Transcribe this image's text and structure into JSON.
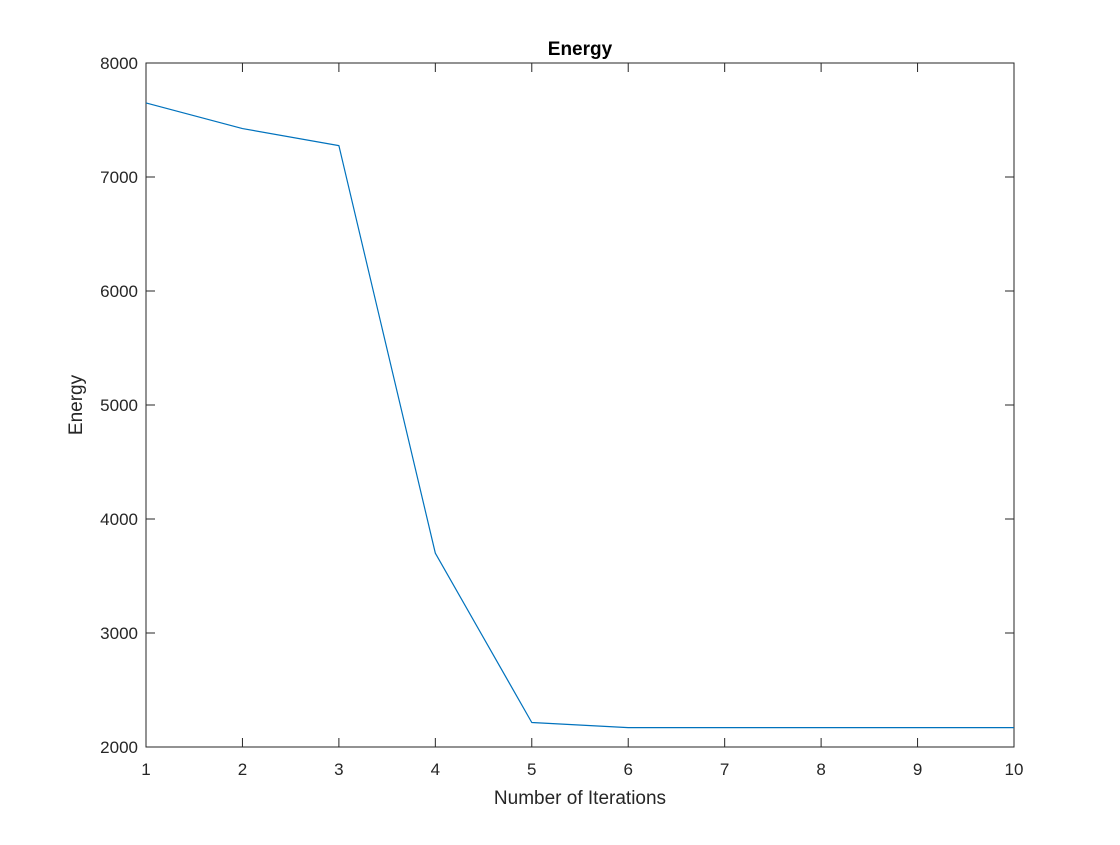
{
  "chart_data": {
    "type": "line",
    "title": "Energy",
    "xlabel": "Number of Iterations",
    "ylabel": "Energy",
    "xlim": [
      1,
      10
    ],
    "ylim": [
      2000,
      8000
    ],
    "xticks": [
      "1",
      "2",
      "3",
      "4",
      "5",
      "6",
      "7",
      "8",
      "9",
      "10"
    ],
    "yticks": [
      "2000",
      "3000",
      "4000",
      "5000",
      "6000",
      "7000",
      "8000"
    ],
    "grid": false,
    "legend": "none",
    "x": [
      1,
      2,
      3,
      4,
      5,
      6,
      7,
      8,
      9,
      10
    ],
    "series": [
      {
        "values": [
          7650,
          7425,
          7275,
          3700,
          2215,
          2170,
          2170,
          2170,
          2170,
          2170
        ],
        "color": "#0072BD"
      }
    ],
    "colors": {
      "axis": "#262626",
      "background": "#ffffff",
      "line": "#0072BD"
    }
  }
}
